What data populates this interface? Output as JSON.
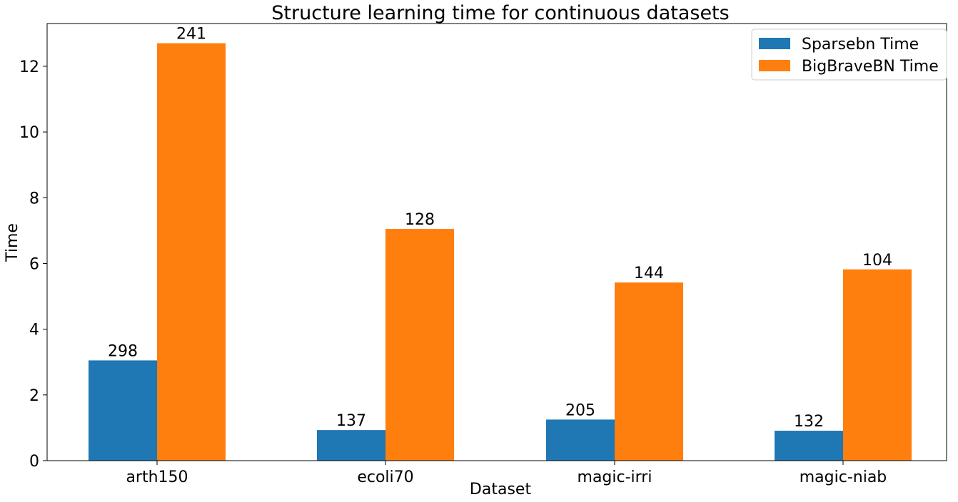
{
  "chart_data": {
    "type": "bar",
    "title": "Structure learning time for continuous datasets",
    "xlabel": "Dataset",
    "ylabel": "Time",
    "categories": [
      "arth150",
      "ecoli70",
      "magic-irri",
      "magic-niab"
    ],
    "series": [
      {
        "name": "Sparsebn Time",
        "color": "#1f77b4",
        "values": [
          3.05,
          0.93,
          1.25,
          0.91
        ],
        "labels": [
          "298",
          "137",
          "205",
          "132"
        ]
      },
      {
        "name": "BigBraveBN Time",
        "color": "#ff7f0e",
        "values": [
          12.7,
          7.05,
          5.42,
          5.82
        ],
        "labels": [
          "241",
          "128",
          "144",
          "104"
        ]
      }
    ],
    "ylim": [
      0,
      13.3
    ],
    "yticks": [
      0,
      2,
      4,
      6,
      8,
      10,
      12
    ],
    "grid": false,
    "legend_position": "top-right"
  }
}
